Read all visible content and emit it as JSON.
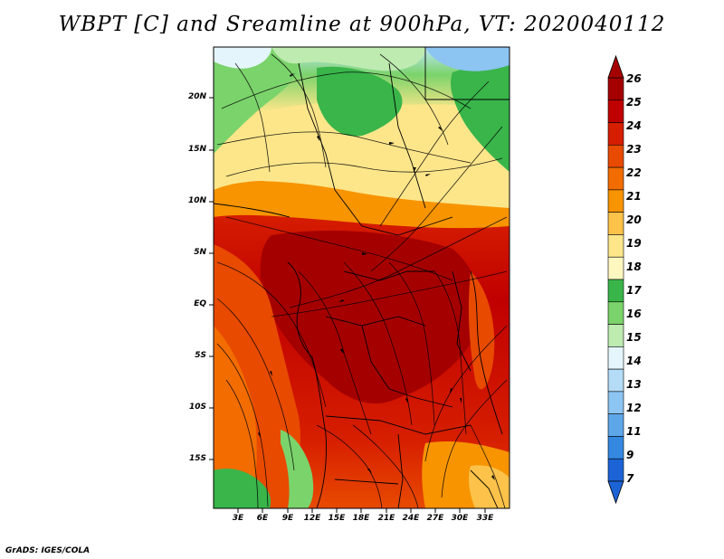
{
  "title": "WBPT [C] and Sreamline at 900hPa, VT: 2020040112",
  "credit": "GrADS: IGES/COLA",
  "map": {
    "lat_range": [
      -20,
      24
    ],
    "lon_range": [
      0,
      36
    ],
    "lat_labels": [
      {
        "value": 20,
        "text": "20N"
      },
      {
        "value": 15,
        "text": "15N"
      },
      {
        "value": 10,
        "text": "10N"
      },
      {
        "value": 5,
        "text": "5N"
      },
      {
        "value": 0,
        "text": "EQ"
      },
      {
        "value": -5,
        "text": "5S"
      },
      {
        "value": -10,
        "text": "10S"
      },
      {
        "value": -15,
        "text": "15S"
      }
    ],
    "lon_labels": [
      {
        "value": 3,
        "text": "3E"
      },
      {
        "value": 6,
        "text": "6E"
      },
      {
        "value": 9,
        "text": "9E"
      },
      {
        "value": 12,
        "text": "12E"
      },
      {
        "value": 15,
        "text": "15E"
      },
      {
        "value": 18,
        "text": "18E"
      },
      {
        "value": 21,
        "text": "21E"
      },
      {
        "value": 24,
        "text": "24E"
      },
      {
        "value": 27,
        "text": "27E"
      },
      {
        "value": 30,
        "text": "30E"
      },
      {
        "value": 33,
        "text": "33E"
      }
    ]
  },
  "colorbar": {
    "levels": [
      {
        "label": "26",
        "color": "#a50000"
      },
      {
        "label": "25",
        "color": "#c00000"
      },
      {
        "label": "24",
        "color": "#d61e00"
      },
      {
        "label": "23",
        "color": "#e84a00"
      },
      {
        "label": "22",
        "color": "#f26c00"
      },
      {
        "label": "21",
        "color": "#f79400"
      },
      {
        "label": "20",
        "color": "#fcc24a"
      },
      {
        "label": "19",
        "color": "#fde68a"
      },
      {
        "label": "18",
        "color": "#fff7c0"
      },
      {
        "label": "17",
        "color": "#39b54a"
      },
      {
        "label": "16",
        "color": "#7bd36b"
      },
      {
        "label": "15",
        "color": "#bdebb0"
      },
      {
        "label": "14",
        "color": "#e4f6fb"
      },
      {
        "label": "13",
        "color": "#b4dcf7"
      },
      {
        "label": "12",
        "color": "#8cc4f2"
      },
      {
        "label": "11",
        "color": "#5ea6ea"
      },
      {
        "label": "9",
        "color": "#3488e0"
      },
      {
        "label": "7",
        "color": "#1c64d6"
      }
    ],
    "low_color": "#1c64d6",
    "high_color": "#a50000"
  }
}
